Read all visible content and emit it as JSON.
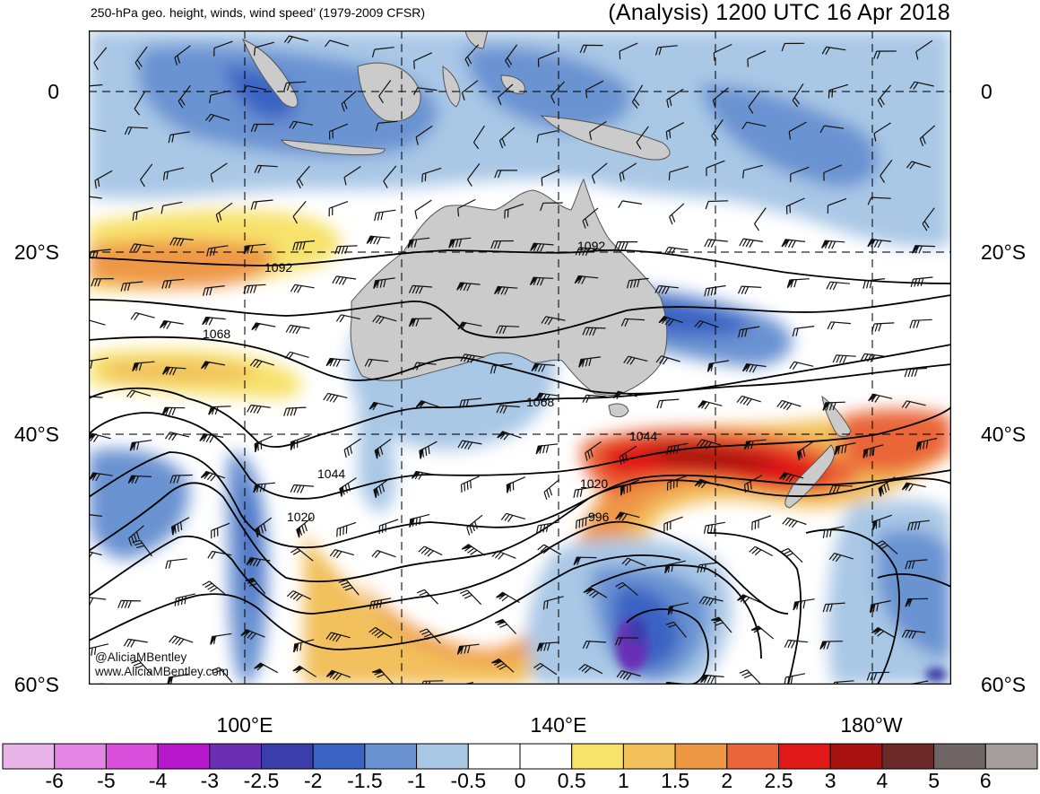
{
  "header": {
    "subtitle": "250-hPa geo. height, winds, wind speed’ (1979-2009 CFSR)",
    "title": "(Analysis) 1200 UTC 16 Apr 2018"
  },
  "map": {
    "extent": {
      "lon_west": 80,
      "lon_east": 190,
      "lat_north": 8,
      "lat_south": -60
    },
    "latitude_labels": [
      "0",
      "20°S",
      "40°S",
      "60°S"
    ],
    "longitude_labels": [
      "100°E",
      "140°E",
      "180°W"
    ],
    "contour_labels": [
      "1092",
      "1092",
      "1068",
      "1068",
      "1044",
      "1044",
      "1020",
      "1020",
      "996"
    ],
    "credit": [
      "@AliciaMBentley",
      "www.AliciaMBentley.com"
    ]
  },
  "colorbar": {
    "ticks": [
      "-6",
      "-5",
      "-4",
      "-3",
      "-2.5",
      "-2",
      "-1.5",
      "-1",
      "-0.5",
      "0",
      "0.5",
      "1",
      "1.5",
      "2",
      "2.5",
      "3",
      "4",
      "5",
      "6"
    ],
    "colors": [
      "#e9b5e9",
      "#e486e4",
      "#d94fdb",
      "#b718cc",
      "#6a2fb5",
      "#3b3eaa",
      "#3a63c3",
      "#6b93d2",
      "#a9c8e6",
      "#ffffff",
      "#ffffff",
      "#f7e26a",
      "#f2c05b",
      "#ee9846",
      "#ea6538",
      "#e01818",
      "#a8120f",
      "#6b2a28",
      "#6f6564",
      "#a59e9d"
    ]
  },
  "colors": {
    "land": "#cbcbcb",
    "contour": "#000000",
    "grid": "#000000"
  }
}
